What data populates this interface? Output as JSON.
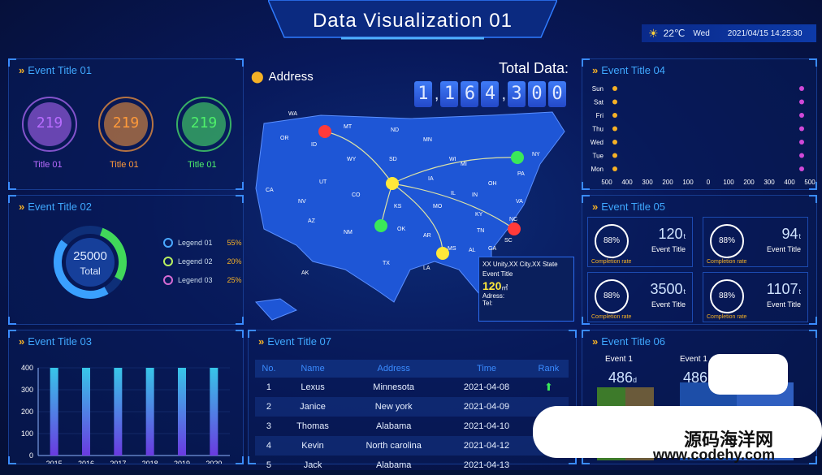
{
  "header": {
    "title": "Data Visualization 01"
  },
  "topinfo": {
    "temperature": "22℃",
    "weekday": "Wed",
    "datetime": "2021/04/15 14:25:30"
  },
  "panel1": {
    "title": "Event Title 01",
    "gauges": [
      {
        "value": "219",
        "label": "Title 01",
        "color": "#b86cff"
      },
      {
        "value": "219",
        "label": "Title 01",
        "color": "#ff9a3a"
      },
      {
        "value": "219",
        "label": "Title 01",
        "color": "#4ef06a"
      }
    ]
  },
  "panel2": {
    "title": "Event Title 02",
    "donut_value": "25000",
    "donut_label": "Total",
    "legends": [
      {
        "name": "Legend 01",
        "pct": "55%",
        "color": "#4aa8ff"
      },
      {
        "name": "Legend 02",
        "pct": "20%",
        "color": "#b8f060"
      },
      {
        "name": "Legend 03",
        "pct": "25%",
        "color": "#d56bd3"
      }
    ]
  },
  "panel3": {
    "title": "Event Title 03"
  },
  "map": {
    "address_label": "Address",
    "total_label": "Total Data:",
    "total_digits": [
      "1",
      ",",
      "1",
      "6",
      "4",
      ",",
      "3",
      "0",
      "0"
    ],
    "states": [
      "WA",
      "OR",
      "CA",
      "ID",
      "MT",
      "NV",
      "UT",
      "AZ",
      "WY",
      "CO",
      "NM",
      "ND",
      "SD",
      "NE",
      "KS",
      "OK",
      "TX",
      "MN",
      "IA",
      "MO",
      "AR",
      "LA",
      "WI",
      "IL",
      "MI",
      "IN",
      "OH",
      "KY",
      "TN",
      "MS",
      "AL",
      "GA",
      "FL",
      "SC",
      "NC",
      "VA",
      "PA",
      "NY",
      "AK"
    ],
    "tooltip": {
      "place": "XX Unity,XX City,XX State",
      "event": "Event Title",
      "value": "120",
      "unit": "㎡",
      "address": "Adress:",
      "tel": "Tel:"
    }
  },
  "panel4": {
    "title": "Event Title 04",
    "days": [
      "Sun",
      "Sat",
      "Fri",
      "Thu",
      "Wed",
      "Tue",
      "Mon"
    ],
    "axis": [
      "500",
      "400",
      "300",
      "200",
      "100",
      "0",
      "100",
      "200",
      "300",
      "400",
      "500"
    ]
  },
  "panel5": {
    "title": "Event Title 05",
    "kpis": [
      {
        "pct": "88%",
        "rate_label": "Completion rate",
        "num": "120",
        "unit": "t",
        "event": "Event Title"
      },
      {
        "pct": "88%",
        "rate_label": "Completion rate",
        "num": "94",
        "unit": "t",
        "event": "Event Title"
      },
      {
        "pct": "88%",
        "rate_label": "Completion rate",
        "num": "3500",
        "unit": "t",
        "event": "Event Title"
      },
      {
        "pct": "88%",
        "rate_label": "Completion rate",
        "num": "1107",
        "unit": "t",
        "event": "Event Title"
      }
    ]
  },
  "panel6": {
    "title": "Event Title 06",
    "items": [
      {
        "label": "Event 1",
        "value": "486",
        "unit": "d"
      },
      {
        "label": "Event 1",
        "value": "486",
        "unit": ""
      }
    ]
  },
  "panel7": {
    "title": "Event Title 07",
    "columns": [
      "No.",
      "Name",
      "Address",
      "Time",
      "Rank"
    ],
    "rows": [
      {
        "no": "1",
        "name": "Lexus",
        "address": "Minnesota",
        "time": "2021-04-08"
      },
      {
        "no": "2",
        "name": "Janice",
        "address": "New york",
        "time": "2021-04-09"
      },
      {
        "no": "3",
        "name": "Thomas",
        "address": "Alabama",
        "time": "2021-04-10"
      },
      {
        "no": "4",
        "name": "Kevin",
        "address": "North carolina",
        "time": "2021-04-12"
      },
      {
        "no": "5",
        "name": "Jack",
        "address": "Alabama",
        "time": "2021-04-13"
      }
    ]
  },
  "watermark": {
    "cn": "源码海洋网",
    "url": "www.codehy.com"
  },
  "chart_data": {
    "type": "bar",
    "categories": [
      "2015",
      "2016",
      "2017",
      "2018",
      "2019",
      "2020"
    ],
    "values": [
      400,
      400,
      400,
      400,
      400,
      400
    ],
    "title": "Event Title 03",
    "xlabel": "",
    "ylabel": "",
    "ylim": [
      0,
      400
    ],
    "yticks": [
      "0",
      "100",
      "200",
      "300",
      "400"
    ]
  }
}
